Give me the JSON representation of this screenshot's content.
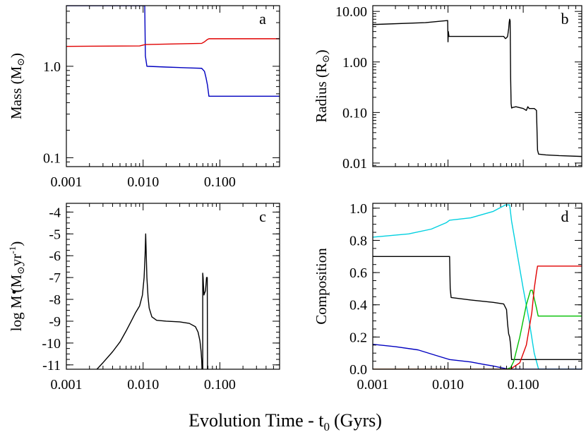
{
  "figure": {
    "xlabel": "Evolution Time - t",
    "xlabel_sub": "0",
    "xlabel_units": "(Gyrs)"
  },
  "chart_data": [
    {
      "panel": "a",
      "type": "line",
      "xscale": "log",
      "yscale": "log",
      "xlim": [
        0.001,
        0.6
      ],
      "ylim": [
        0.08,
        4.6
      ],
      "grid": false,
      "ylabel": {
        "main": "Mass (M",
        "sym": "⊙",
        "tail": ")"
      },
      "xticks": [
        {
          "v": 0.001,
          "label": "0.001"
        },
        {
          "v": 0.01,
          "label": "0.010"
        },
        {
          "v": 0.1,
          "label": "0.100"
        }
      ],
      "yticks": [
        {
          "v": 0.1,
          "label": "0.1"
        },
        {
          "v": 1.0,
          "label": "1.0"
        }
      ],
      "series": [
        {
          "color": "#0000c0",
          "x": [
            0.001,
            0.0105,
            0.0107,
            0.0112,
            0.02,
            0.04,
            0.058,
            0.063,
            0.066,
            0.069,
            0.072,
            0.6
          ],
          "y": [
            4.6,
            4.6,
            1.3,
            1.0,
            0.98,
            0.96,
            0.95,
            0.88,
            0.75,
            0.62,
            0.47,
            0.47
          ]
        },
        {
          "color": "#e00000",
          "x": [
            0.001,
            0.009,
            0.0105,
            0.011,
            0.03,
            0.058,
            0.063,
            0.068,
            0.072,
            0.6
          ],
          "y": [
            1.65,
            1.67,
            1.72,
            1.73,
            1.76,
            1.78,
            1.85,
            1.95,
            2.0,
            2.0
          ]
        }
      ]
    },
    {
      "panel": "b",
      "type": "line",
      "xscale": "log",
      "yscale": "log",
      "xlim": [
        0.001,
        0.6
      ],
      "ylim": [
        0.0085,
        13
      ],
      "grid": false,
      "ylabel": {
        "main": "Radius (R",
        "sym": "⊙",
        "tail": ")"
      },
      "xticks": [
        {
          "v": 0.001,
          "label": ""
        },
        {
          "v": 0.01,
          "label": ""
        },
        {
          "v": 0.1,
          "label": ""
        }
      ],
      "yticks": [
        {
          "v": 0.01,
          "label": "0.01"
        },
        {
          "v": 0.1,
          "label": "0.10"
        },
        {
          "v": 1.0,
          "label": "1.00"
        },
        {
          "v": 10.0,
          "label": "10.00"
        }
      ],
      "series": [
        {
          "color": "#000000",
          "x": [
            0.001,
            0.005,
            0.0099,
            0.01,
            0.0101,
            0.0103,
            0.02,
            0.04,
            0.055,
            0.058,
            0.06,
            0.062,
            0.064,
            0.065,
            0.066,
            0.067,
            0.068,
            0.069,
            0.07,
            0.0705,
            0.071,
            0.08,
            0.1,
            0.11,
            0.115,
            0.12,
            0.13,
            0.14,
            0.15,
            0.155,
            0.16,
            0.2,
            0.3,
            0.6
          ],
          "y": [
            5.5,
            6.0,
            6.6,
            2.5,
            4.0,
            3.2,
            3.2,
            3.2,
            3.2,
            2.9,
            3.0,
            3.2,
            4.5,
            6.0,
            7.0,
            6.5,
            0.5,
            0.15,
            0.125,
            0.122,
            0.125,
            0.13,
            0.12,
            0.11,
            0.13,
            0.12,
            0.12,
            0.12,
            0.11,
            0.018,
            0.015,
            0.0145,
            0.014,
            0.0135
          ]
        }
      ]
    },
    {
      "panel": "c",
      "type": "line",
      "xscale": "log",
      "yscale": "linear",
      "xlim": [
        0.001,
        0.6
      ],
      "ylim": [
        -11.2,
        -3.6
      ],
      "grid": false,
      "ylabel": {
        "main": "log ",
        "mdot": "M",
        "paren": "(M",
        "sym": "⊙",
        "units": "yr",
        "sup": "-1",
        "tail": ")"
      },
      "xticks": [
        {
          "v": 0.001,
          "label": "0.001"
        },
        {
          "v": 0.01,
          "label": "0.010"
        },
        {
          "v": 0.1,
          "label": "0.100"
        }
      ],
      "yticks": [
        {
          "v": -11,
          "label": "-11"
        },
        {
          "v": -10,
          "label": "-10"
        },
        {
          "v": -9,
          "label": "-9"
        },
        {
          "v": -8,
          "label": "-8"
        },
        {
          "v": -7,
          "label": "-7"
        },
        {
          "v": -6,
          "label": "-6"
        },
        {
          "v": -5,
          "label": "-5"
        },
        {
          "v": -4,
          "label": "-4"
        }
      ],
      "series": [
        {
          "color": "#000000",
          "x": [
            0.0025,
            0.003,
            0.004,
            0.005,
            0.006,
            0.007,
            0.008,
            0.009,
            0.0098,
            0.0103,
            0.0106,
            0.0108,
            0.011,
            0.0112,
            0.0116,
            0.012,
            0.013,
            0.015,
            0.02,
            0.03,
            0.04,
            0.048,
            0.052,
            0.055,
            0.057,
            0.058,
            0.0585,
            0.059,
            0.0598,
            0.0598,
            0.0605,
            0.062,
            0.065,
            0.067,
            0.0685,
            0.0688,
            0.069,
            0.069
          ],
          "y": [
            -11.2,
            -10.9,
            -10.4,
            -9.95,
            -9.45,
            -9.0,
            -8.6,
            -8.3,
            -7.8,
            -7.0,
            -6.0,
            -5.0,
            -6.0,
            -7.0,
            -7.9,
            -8.4,
            -8.8,
            -8.96,
            -9.0,
            -9.03,
            -9.1,
            -9.25,
            -9.5,
            -9.9,
            -10.4,
            -10.8,
            -11.2,
            -11.2,
            -11.2,
            -6.8,
            -7.0,
            -7.8,
            -7.6,
            -7.0,
            -7.0,
            -9.5,
            -11.2,
            -11.2
          ]
        }
      ]
    },
    {
      "panel": "d",
      "type": "line",
      "xscale": "log",
      "yscale": "linear",
      "xlim": [
        0.001,
        0.6
      ],
      "ylim": [
        0.0,
        1.03
      ],
      "grid": false,
      "ylabel": {
        "main": "Composition"
      },
      "xticks": [
        {
          "v": 0.001,
          "label": "0.001"
        },
        {
          "v": 0.01,
          "label": "0.010"
        },
        {
          "v": 0.1,
          "label": "0.100"
        }
      ],
      "yticks": [
        {
          "v": 0.0,
          "label": "0.0"
        },
        {
          "v": 0.2,
          "label": "0.2"
        },
        {
          "v": 0.4,
          "label": "0.4"
        },
        {
          "v": 0.6,
          "label": "0.6"
        },
        {
          "v": 0.8,
          "label": "0.8"
        },
        {
          "v": 1.0,
          "label": "1.0"
        }
      ],
      "series": [
        {
          "color": "#00d0e0",
          "x": [
            0.001,
            0.003,
            0.006,
            0.0095,
            0.0105,
            0.02,
            0.04,
            0.058,
            0.066,
            0.07,
            0.1,
            0.12,
            0.14,
            0.16,
            0.6
          ],
          "y": [
            0.82,
            0.84,
            0.87,
            0.91,
            0.925,
            0.94,
            0.98,
            1.02,
            1.02,
            0.92,
            0.5,
            0.3,
            0.1,
            0.0,
            0.0
          ]
        },
        {
          "color": "#000000",
          "x": [
            0.001,
            0.0105,
            0.0107,
            0.011,
            0.02,
            0.04,
            0.055,
            0.06,
            0.062,
            0.064,
            0.066,
            0.068,
            0.07,
            0.6
          ],
          "y": [
            0.7,
            0.7,
            0.5,
            0.445,
            0.43,
            0.415,
            0.405,
            0.37,
            0.28,
            0.22,
            0.2,
            0.15,
            0.06,
            0.06
          ]
        },
        {
          "color": "#0000c0",
          "x": [
            0.001,
            0.002,
            0.004,
            0.007,
            0.0105,
            0.02,
            0.03,
            0.04,
            0.05,
            0.06,
            0.066,
            0.07,
            0.6
          ],
          "y": [
            0.155,
            0.14,
            0.12,
            0.085,
            0.06,
            0.045,
            0.03,
            0.02,
            0.01,
            0.003,
            0.0,
            0.0,
            0.0
          ]
        },
        {
          "color": "#00c000",
          "x": [
            0.001,
            0.06,
            0.068,
            0.075,
            0.09,
            0.11,
            0.125,
            0.132,
            0.14,
            0.15,
            0.158,
            0.6
          ],
          "y": [
            0.0,
            0.0,
            0.01,
            0.05,
            0.2,
            0.4,
            0.49,
            0.49,
            0.44,
            0.38,
            0.33,
            0.33
          ]
        },
        {
          "color": "#e00000",
          "x": [
            0.001,
            0.066,
            0.07,
            0.09,
            0.11,
            0.13,
            0.14,
            0.15,
            0.155,
            0.16,
            0.6
          ],
          "y": [
            0.0,
            0.0,
            0.005,
            0.04,
            0.15,
            0.35,
            0.5,
            0.6,
            0.64,
            0.64,
            0.64
          ]
        }
      ]
    }
  ]
}
